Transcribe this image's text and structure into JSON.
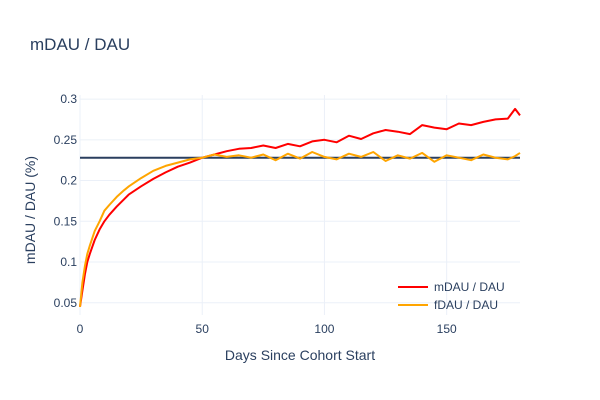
{
  "chart_data": {
    "type": "line",
    "title": "mDAU / DAU",
    "xlabel": "Days Since Cohort Start",
    "ylabel": "mDAU / DAU (%)",
    "xlim": [
      0,
      180
    ],
    "ylim": [
      0.035,
      0.305
    ],
    "x_ticks": [
      0,
      50,
      100,
      150
    ],
    "y_ticks": [
      0.05,
      0.1,
      0.15,
      0.2,
      0.25,
      0.3
    ],
    "x_tick_labels": [
      "0",
      "50",
      "100",
      "150"
    ],
    "y_tick_labels": [
      "0.05",
      "0.1",
      "0.15",
      "0.2",
      "0.25",
      "0.3"
    ],
    "grid": true,
    "legend_position": "bottom-right",
    "reference_line": {
      "y": 0.228,
      "color": "#2a3f5f"
    },
    "series": [
      {
        "name": "mDAU / DAU",
        "color": "#ff0000",
        "x": [
          0,
          1,
          2,
          3,
          4,
          6,
          8,
          10,
          12,
          15,
          18,
          20,
          25,
          30,
          35,
          40,
          45,
          50,
          55,
          60,
          65,
          70,
          75,
          80,
          85,
          90,
          95,
          100,
          105,
          110,
          115,
          120,
          125,
          130,
          135,
          140,
          145,
          150,
          155,
          160,
          165,
          170,
          175,
          178,
          180
        ],
        "y": [
          0.045,
          0.065,
          0.085,
          0.1,
          0.11,
          0.127,
          0.14,
          0.15,
          0.158,
          0.168,
          0.177,
          0.183,
          0.193,
          0.202,
          0.21,
          0.217,
          0.222,
          0.228,
          0.232,
          0.236,
          0.239,
          0.24,
          0.243,
          0.24,
          0.245,
          0.242,
          0.248,
          0.25,
          0.247,
          0.255,
          0.251,
          0.258,
          0.262,
          0.26,
          0.257,
          0.268,
          0.265,
          0.263,
          0.27,
          0.268,
          0.272,
          0.275,
          0.276,
          0.288,
          0.28
        ]
      },
      {
        "name": "fDAU / DAU",
        "color": "#ffa500",
        "x": [
          0,
          1,
          2,
          3,
          4,
          6,
          8,
          10,
          12,
          15,
          18,
          20,
          25,
          30,
          35,
          40,
          45,
          50,
          55,
          60,
          65,
          70,
          75,
          80,
          85,
          90,
          95,
          100,
          105,
          110,
          115,
          120,
          125,
          130,
          135,
          140,
          145,
          150,
          155,
          160,
          165,
          170,
          175,
          178,
          180
        ],
        "y": [
          0.045,
          0.075,
          0.095,
          0.11,
          0.12,
          0.138,
          0.15,
          0.163,
          0.17,
          0.18,
          0.188,
          0.193,
          0.203,
          0.212,
          0.218,
          0.222,
          0.226,
          0.228,
          0.232,
          0.229,
          0.231,
          0.228,
          0.232,
          0.225,
          0.233,
          0.227,
          0.235,
          0.229,
          0.226,
          0.233,
          0.229,
          0.235,
          0.224,
          0.231,
          0.227,
          0.234,
          0.223,
          0.231,
          0.228,
          0.225,
          0.232,
          0.228,
          0.226,
          0.23,
          0.234
        ]
      }
    ]
  }
}
